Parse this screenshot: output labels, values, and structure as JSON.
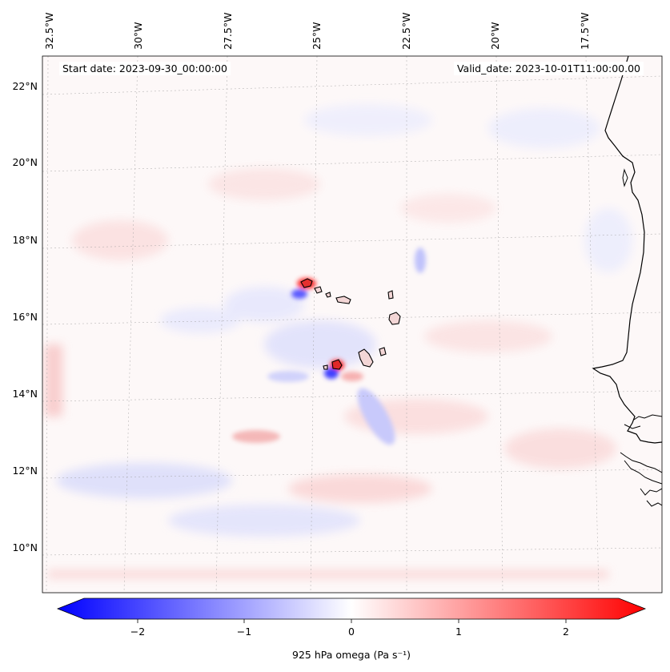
{
  "header": {
    "start_date": "Start date: 2023-09-30_00:00:00",
    "valid_date": "Valid_date: 2023-10-01T11:00:00.00"
  },
  "map": {
    "lon_labels": [
      "32.5°W",
      "30°W",
      "27.5°W",
      "25°W",
      "22.5°W",
      "20°W",
      "17.5°W"
    ],
    "lat_labels": [
      "22°N",
      "20°N",
      "18°N",
      "16°N",
      "14°N",
      "12°N",
      "10°N"
    ],
    "extent": {
      "lon_min": -33.0,
      "lon_max": -15.8,
      "lat_min": 8.9,
      "lat_max": 22.8
    },
    "features": [
      "coastline",
      "cape-verde-islands",
      "gridlines"
    ]
  },
  "colorbar": {
    "label": "925 hPa omega (Pa s⁻¹)",
    "tick_labels": [
      "−2",
      "−1",
      "0",
      "1",
      "2"
    ],
    "ticks": [
      -2,
      -1,
      0,
      1,
      2
    ],
    "range": [
      -2.5,
      2.5
    ],
    "extend": "both",
    "cmap": "bwr",
    "colors": {
      "negative": "#0000ff",
      "zero": "#ffffff",
      "positive": "#ff0000"
    }
  }
}
